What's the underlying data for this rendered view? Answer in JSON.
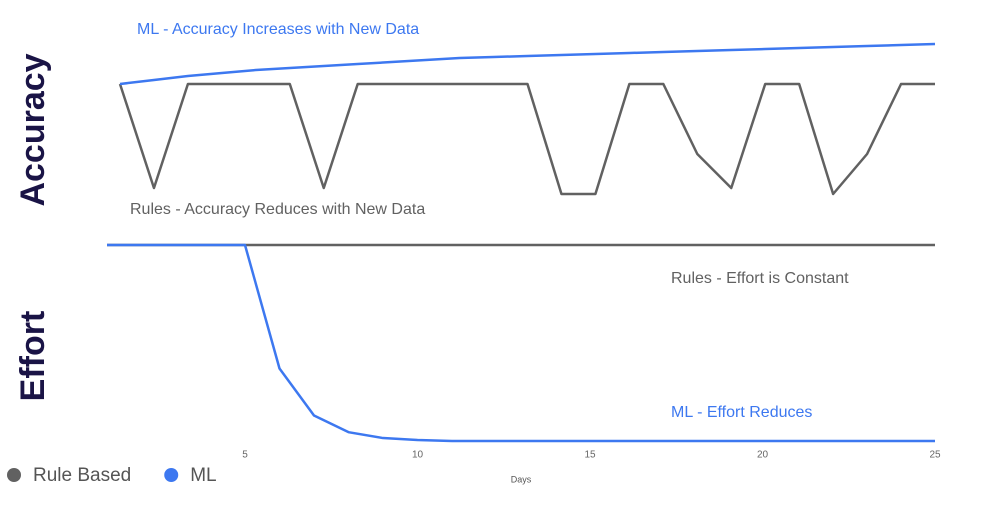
{
  "chart_data": [
    {
      "type": "line",
      "ylabel": "Accuracy",
      "x": [
        1,
        2,
        3,
        4,
        5,
        6,
        7,
        8,
        9,
        10,
        11,
        12,
        13,
        14,
        15,
        16,
        17,
        18,
        19,
        20,
        21,
        22,
        23,
        24,
        25
      ],
      "xlim": [
        1,
        25
      ],
      "ylim": [
        0,
        100
      ],
      "series": [
        {
          "name": "Rule Based",
          "color": "#616161",
          "values": [
            73,
            21,
            73,
            73,
            73,
            73,
            21,
            73,
            73,
            73,
            73,
            73,
            73,
            18,
            18,
            73,
            73,
            38,
            21,
            73,
            73,
            18,
            38,
            73,
            73
          ]
        },
        {
          "name": "ML",
          "color": "#3d78f0",
          "values": [
            73,
            75,
            77,
            78.5,
            80,
            81,
            82,
            83,
            84,
            85,
            86,
            86.5,
            87,
            87.5,
            88,
            88.5,
            89,
            89.5,
            90,
            90.5,
            91,
            91.5,
            92,
            92.5,
            93
          ]
        }
      ],
      "annotations": [
        "ML - Accuracy Increases with New Data",
        "Rules - Accuracy Reduces with New Data"
      ]
    },
    {
      "type": "line",
      "ylabel": "Effort",
      "xlabel": "Days",
      "x": [
        1,
        2,
        3,
        4,
        5,
        6,
        7,
        8,
        9,
        10,
        11,
        12,
        13,
        14,
        15,
        16,
        17,
        18,
        19,
        20,
        21,
        22,
        23,
        24,
        25
      ],
      "xlim": [
        1,
        25
      ],
      "xticks": [
        5,
        10,
        15,
        20,
        25
      ],
      "ylim": [
        0,
        100
      ],
      "series": [
        {
          "color": "#616161",
          "values": [
            100,
            100,
            100,
            100,
            100,
            100,
            100,
            100,
            100,
            100,
            100,
            100,
            100,
            100,
            100,
            100,
            100,
            100,
            100,
            100,
            100,
            100,
            100,
            100,
            100
          ]
        },
        {
          "color": "#3d78f0",
          "values": [
            100,
            100,
            100,
            100,
            100,
            37,
            13,
            4.5,
            1.5,
            0.5,
            0,
            0,
            0,
            0,
            0,
            0,
            0,
            0,
            0,
            0,
            0,
            0,
            0,
            0,
            0
          ]
        }
      ],
      "annotations": [
        "Rules - Effort is Constant",
        "ML - Effort Reduces"
      ]
    }
  ]
}
